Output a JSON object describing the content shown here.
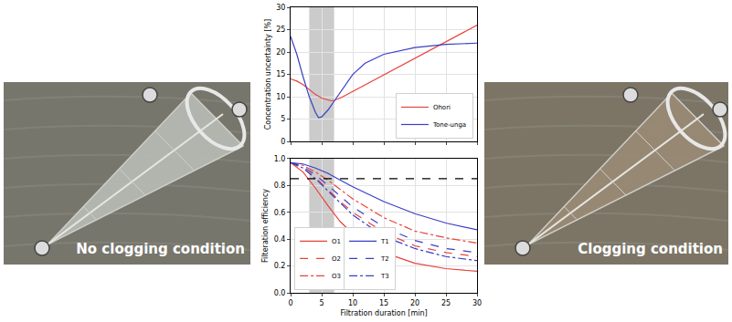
{
  "photos": [
    {
      "caption": "No clogging condition"
    },
    {
      "caption": "Clogging condition"
    }
  ],
  "chart_data": [
    {
      "type": "line",
      "y_label": "Concentration uncertainty [%]",
      "xlim": [
        0,
        30
      ],
      "xticks": [
        0,
        5,
        10,
        15,
        20,
        25,
        30
      ],
      "ylim": [
        0,
        30
      ],
      "yticks": [
        0,
        5,
        10,
        15,
        20,
        25,
        30
      ],
      "grid": true,
      "legend": "lower right",
      "tick_labels": "y",
      "shaded_region": [
        3,
        7
      ],
      "series": [
        {
          "name": "Ohori",
          "color": "#e8423a",
          "line_style": "solid",
          "x": [
            0,
            1,
            2,
            3,
            4,
            5,
            6,
            6.5,
            7,
            8,
            10,
            15,
            20,
            25,
            30
          ],
          "values": [
            14,
            13.5,
            12.7,
            11.5,
            10.5,
            9.7,
            9.2,
            9.1,
            9.2,
            9.7,
            11.2,
            14.9,
            18.6,
            22.3,
            26
          ]
        },
        {
          "name": "Tone-unga",
          "color": "#3a3fc4",
          "line_style": "solid",
          "x": [
            0,
            1,
            2,
            3,
            4,
            4.5,
            5,
            6,
            7,
            8,
            10,
            12,
            15,
            20,
            25,
            30
          ],
          "values": [
            23.5,
            19.5,
            14.5,
            10,
            6.5,
            5.3,
            5.5,
            7,
            9,
            11,
            15,
            17.5,
            19.5,
            21,
            21.7,
            22
          ]
        }
      ]
    },
    {
      "type": "line",
      "x_label": "Filtration duration [min]",
      "y_label": "Filteration efficiency",
      "xlim": [
        0,
        30
      ],
      "xticks": [
        0,
        5,
        10,
        15,
        20,
        25,
        30
      ],
      "ylim": [
        0,
        1
      ],
      "yticks": [
        {
          "value": 0,
          "label": "0.0"
        },
        {
          "value": 0.2,
          "label": "0.2"
        },
        {
          "value": 0.4,
          "label": "0.4"
        },
        {
          "value": 0.6,
          "label": "0.6"
        },
        {
          "value": 0.8,
          "label": "0.8"
        },
        {
          "value": 1,
          "label": "1.0"
        }
      ],
      "grid": true,
      "legend": "lower left",
      "shaded_region": [
        3,
        7
      ],
      "reference_line": {
        "y": 0.85,
        "color": "#000000",
        "line_style": "dash"
      },
      "series": [
        {
          "name": "O1",
          "color": "#e8423a",
          "line_style": "solid",
          "x": [
            0,
            2,
            4,
            6,
            8,
            10,
            15,
            20,
            25,
            30
          ],
          "values": [
            0.97,
            0.9,
            0.78,
            0.65,
            0.53,
            0.44,
            0.3,
            0.22,
            0.18,
            0.16
          ]
        },
        {
          "name": "O2",
          "color": "#e8423a",
          "line_style": "dash",
          "x": [
            0,
            2,
            4,
            6,
            8,
            10,
            15,
            20,
            25,
            30
          ],
          "values": [
            0.97,
            0.93,
            0.86,
            0.77,
            0.68,
            0.6,
            0.45,
            0.35,
            0.3,
            0.27
          ]
        },
        {
          "name": "O3",
          "color": "#e8423a",
          "line_style": "dashdot",
          "x": [
            0,
            2,
            4,
            6,
            8,
            10,
            15,
            20,
            25,
            30
          ],
          "values": [
            0.97,
            0.95,
            0.9,
            0.84,
            0.77,
            0.7,
            0.56,
            0.46,
            0.41,
            0.37
          ]
        },
        {
          "name": "T1",
          "color": "#3a3fc4",
          "line_style": "solid",
          "x": [
            0,
            2,
            4,
            6,
            8,
            10,
            15,
            20,
            25,
            30
          ],
          "values": [
            0.97,
            0.96,
            0.93,
            0.89,
            0.84,
            0.79,
            0.68,
            0.59,
            0.52,
            0.47
          ]
        },
        {
          "name": "T2",
          "color": "#3a3fc4",
          "line_style": "dash",
          "x": [
            0,
            2,
            4,
            6,
            8,
            10,
            15,
            20,
            25,
            30
          ],
          "values": [
            0.97,
            0.94,
            0.88,
            0.8,
            0.72,
            0.64,
            0.49,
            0.39,
            0.33,
            0.3
          ]
        },
        {
          "name": "T3",
          "color": "#3a3fc4",
          "line_style": "dashdot",
          "x": [
            0,
            2,
            4,
            6,
            8,
            10,
            15,
            20,
            25,
            30
          ],
          "values": [
            0.97,
            0.93,
            0.85,
            0.76,
            0.67,
            0.58,
            0.42,
            0.33,
            0.27,
            0.24
          ]
        }
      ]
    }
  ]
}
